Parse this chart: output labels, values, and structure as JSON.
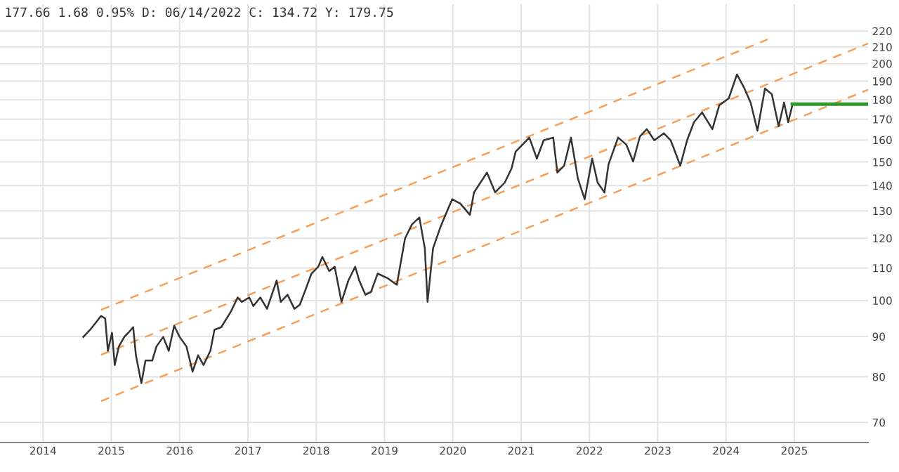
{
  "chart_data": {
    "type": "line",
    "annotations": [
      "177.66 1.68 0.95% D: 06/14/2022 C: 134.72 Y: 179.75"
    ],
    "xlim": [
      2013.37,
      2026.08
    ],
    "xticks": [
      2014,
      2015,
      2016,
      2017,
      2018,
      2019,
      2020,
      2021,
      2022,
      2023,
      2024,
      2025
    ],
    "ylim": [
      66,
      238
    ],
    "yticks": [
      70,
      80,
      90,
      100,
      110,
      120,
      130,
      140,
      150,
      160,
      170,
      180,
      190,
      200,
      210,
      220
    ],
    "log": "y",
    "grid": true,
    "legend": false,
    "marker": "none",
    "ref_lines": [
      {
        "axis": "y",
        "value": 177.66,
        "color": "#2e9a2e"
      }
    ],
    "series": [
      {
        "color": "#333333",
        "line_style": "solid",
        "x": [
          2014.59,
          2014.69,
          2014.85,
          2014.91,
          2014.95,
          2015.01,
          2015.05,
          2015.11,
          2015.19,
          2015.25,
          2015.32,
          2015.36,
          2015.44,
          2015.5,
          2015.6,
          2015.66,
          2015.76,
          2015.84,
          2015.92,
          2016.0,
          2016.1,
          2016.19,
          2016.27,
          2016.35,
          2016.45,
          2016.51,
          2016.61,
          2016.75,
          2016.85,
          2016.91,
          2017.02,
          2017.08,
          2017.18,
          2017.28,
          2017.42,
          2017.48,
          2017.58,
          2017.68,
          2017.76,
          2017.83,
          2017.93,
          2018.03,
          2018.09,
          2018.19,
          2018.27,
          2018.37,
          2018.47,
          2018.57,
          2018.63,
          2018.72,
          2018.8,
          2018.9,
          2019.04,
          2019.18,
          2019.3,
          2019.4,
          2019.51,
          2019.59,
          2019.63,
          2019.71,
          2019.81,
          2019.85,
          2019.99,
          2020.11,
          2020.25,
          2020.31,
          2020.5,
          2020.62,
          2020.76,
          2020.86,
          2020.92,
          2021.12,
          2021.23,
          2021.33,
          2021.47,
          2021.53,
          2021.63,
          2021.73,
          2021.83,
          2021.93,
          2022.04,
          2022.12,
          2022.22,
          2022.28,
          2022.42,
          2022.54,
          2022.64,
          2022.74,
          2022.84,
          2022.95,
          2023.09,
          2023.19,
          2023.33,
          2023.43,
          2023.53,
          2023.65,
          2023.8,
          2023.9,
          2024.04,
          2024.16,
          2024.26,
          2024.36,
          2024.46,
          2024.57,
          2024.67,
          2024.77,
          2024.85,
          2024.91,
          2024.97
        ],
        "values": [
          89.9,
          91.8,
          95.6,
          94.9,
          86.3,
          91.0,
          82.8,
          87.4,
          89.9,
          91.0,
          92.5,
          85.2,
          78.5,
          83.9,
          83.9,
          87.4,
          89.9,
          86.3,
          92.9,
          89.9,
          87.4,
          81.2,
          85.2,
          82.8,
          86.3,
          91.8,
          92.5,
          96.8,
          100.9,
          99.6,
          100.9,
          98.4,
          100.9,
          97.6,
          106.0,
          99.6,
          101.7,
          97.6,
          98.8,
          102.5,
          108.2,
          110.4,
          113.6,
          109.0,
          110.4,
          99.6,
          106.0,
          110.4,
          106.0,
          101.7,
          102.5,
          108.2,
          106.8,
          104.7,
          119.9,
          124.9,
          127.5,
          116.5,
          99.6,
          116.5,
          123.4,
          125.9,
          134.5,
          132.8,
          128.5,
          137.2,
          145.4,
          137.2,
          141.2,
          147.2,
          154.6,
          161.1,
          151.5,
          159.8,
          161.1,
          145.4,
          148.4,
          161.1,
          143.0,
          134.5,
          151.5,
          141.2,
          137.2,
          149.0,
          161.1,
          157.8,
          150.2,
          161.7,
          165.1,
          159.8,
          163.1,
          159.8,
          148.4,
          159.8,
          168.5,
          173.4,
          165.1,
          177.0,
          180.7,
          193.8,
          186.7,
          178.5,
          164.4,
          186.0,
          182.9,
          166.5,
          178.5,
          168.5,
          177.0
        ]
      },
      {
        "type": "line",
        "color": "#f5a05a",
        "line_style": "dashed",
        "x": [
          2014.85,
          2024.61
        ],
        "values": [
          97.3,
          214.7
        ]
      },
      {
        "type": "line",
        "color": "#f5a05a",
        "line_style": "dashed",
        "x": [
          2014.85,
          2026.08
        ],
        "values": [
          85.3,
          212.2
        ]
      },
      {
        "type": "line",
        "color": "#f5a05a",
        "line_style": "dashed",
        "x": [
          2014.85,
          2026.08
        ],
        "values": [
          74.5,
          185.3
        ]
      }
    ]
  }
}
